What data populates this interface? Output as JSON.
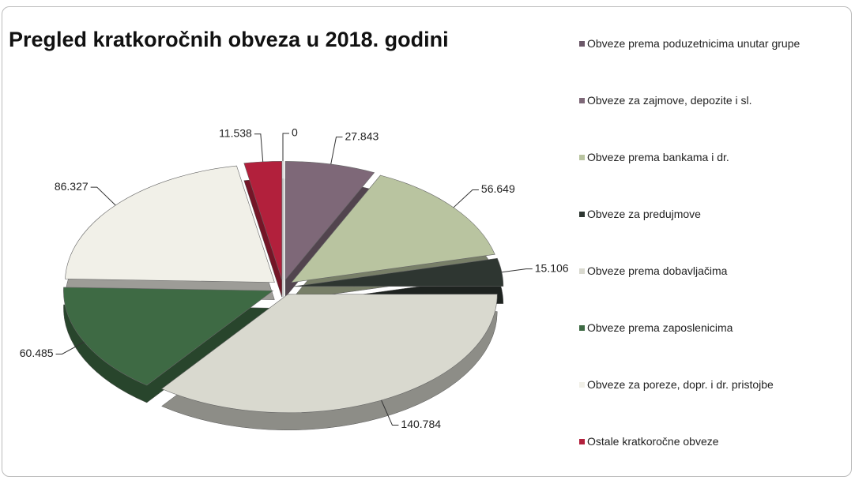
{
  "chart_data": {
    "type": "pie",
    "title": "Pregled kratkoročnih obveza u 2018. godini",
    "categories": [
      "Obveze prema poduzetnicima unutar grupe",
      "Obveze za zajmove, depozite i sl.",
      "Obveze prema bankama i dr.",
      "Obveze za predujmove",
      "Obveze prema dobavljačima",
      "Obveze prema zaposlenicima",
      "Obveze za poreze, dopr. i dr. pristojbe",
      "Ostale kratkoročne obveze"
    ],
    "values": [
      0,
      27.843,
      56.649,
      15.106,
      140.784,
      60.485,
      86.327,
      11.538
    ],
    "colors": [
      "#6b5868",
      "#7e6878",
      "#b9c4a0",
      "#2e3631",
      "#d9d9cf",
      "#3e6a44",
      "#f1f0e8",
      "#b2203c"
    ],
    "legend": "right"
  }
}
